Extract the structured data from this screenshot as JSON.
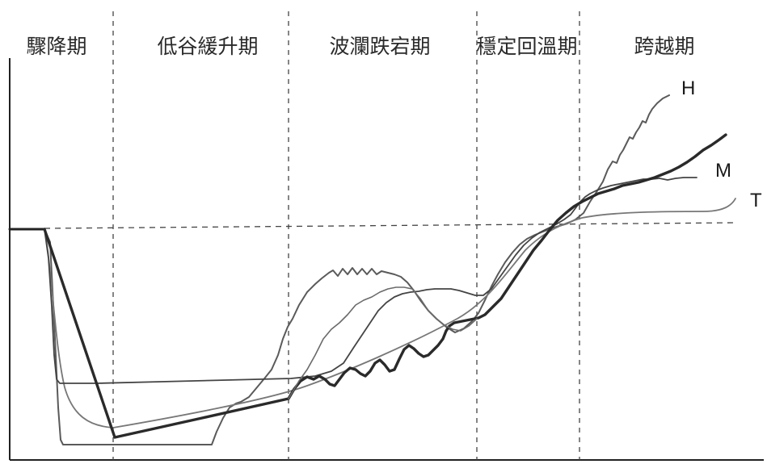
{
  "phases": [
    {
      "label": "驟降期"
    },
    {
      "label": "低谷緩升期"
    },
    {
      "label": "波瀾跌宕期"
    },
    {
      "label": "穩定回溫期"
    },
    {
      "label": "跨越期"
    }
  ],
  "series": [
    {
      "name": "H",
      "color": "#555555"
    },
    {
      "name": "M",
      "color": "#333333"
    },
    {
      "name": "T",
      "color": "#777777"
    }
  ]
}
